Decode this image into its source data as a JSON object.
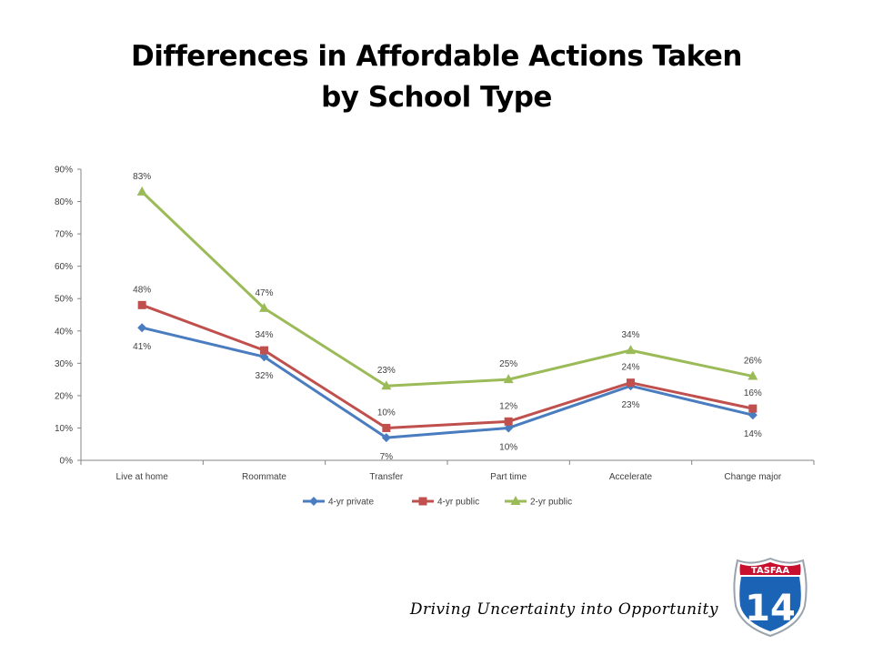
{
  "slide": {
    "title_line1": "Differences in Affordable Actions Taken",
    "title_line2": "by School Type",
    "footer": "Driving Uncertainty into Opportunity"
  },
  "logo": {
    "name": "TASFAA",
    "number": "14",
    "colors": {
      "shield_red": "#c8102e",
      "shield_blue": "#1b63b5",
      "border": "#ffffff",
      "outline": "#9aa3ad"
    }
  },
  "chart_data": {
    "type": "line",
    "categories": [
      "Live at home",
      "Roommate",
      "Transfer",
      "Part time",
      "Accelerate",
      "Change major"
    ],
    "ylim": [
      0,
      90
    ],
    "yticks": [
      "0%",
      "10%",
      "20%",
      "30%",
      "40%",
      "50%",
      "60%",
      "70%",
      "80%",
      "90%"
    ],
    "legend_position": "bottom",
    "grid": false,
    "series": [
      {
        "name": "4-yr private",
        "values": [
          41,
          32,
          7,
          10,
          23,
          14
        ],
        "labels": [
          "41%",
          "32%",
          "7%",
          "10%",
          "23%",
          "14%"
        ],
        "color": "#4a7dbf",
        "marker": "diamond"
      },
      {
        "name": "4-yr public",
        "values": [
          48,
          34,
          10,
          12,
          24,
          16
        ],
        "labels": [
          "48%",
          "34%",
          "10%",
          "12%",
          "24%",
          "16%"
        ],
        "color": "#c0504d",
        "marker": "square"
      },
      {
        "name": "2-yr public",
        "values": [
          83,
          47,
          23,
          25,
          34,
          26
        ],
        "labels": [
          "83%",
          "47%",
          "23%",
          "25%",
          "34%",
          "26%"
        ],
        "color": "#9bbb59",
        "marker": "triangle"
      }
    ]
  }
}
